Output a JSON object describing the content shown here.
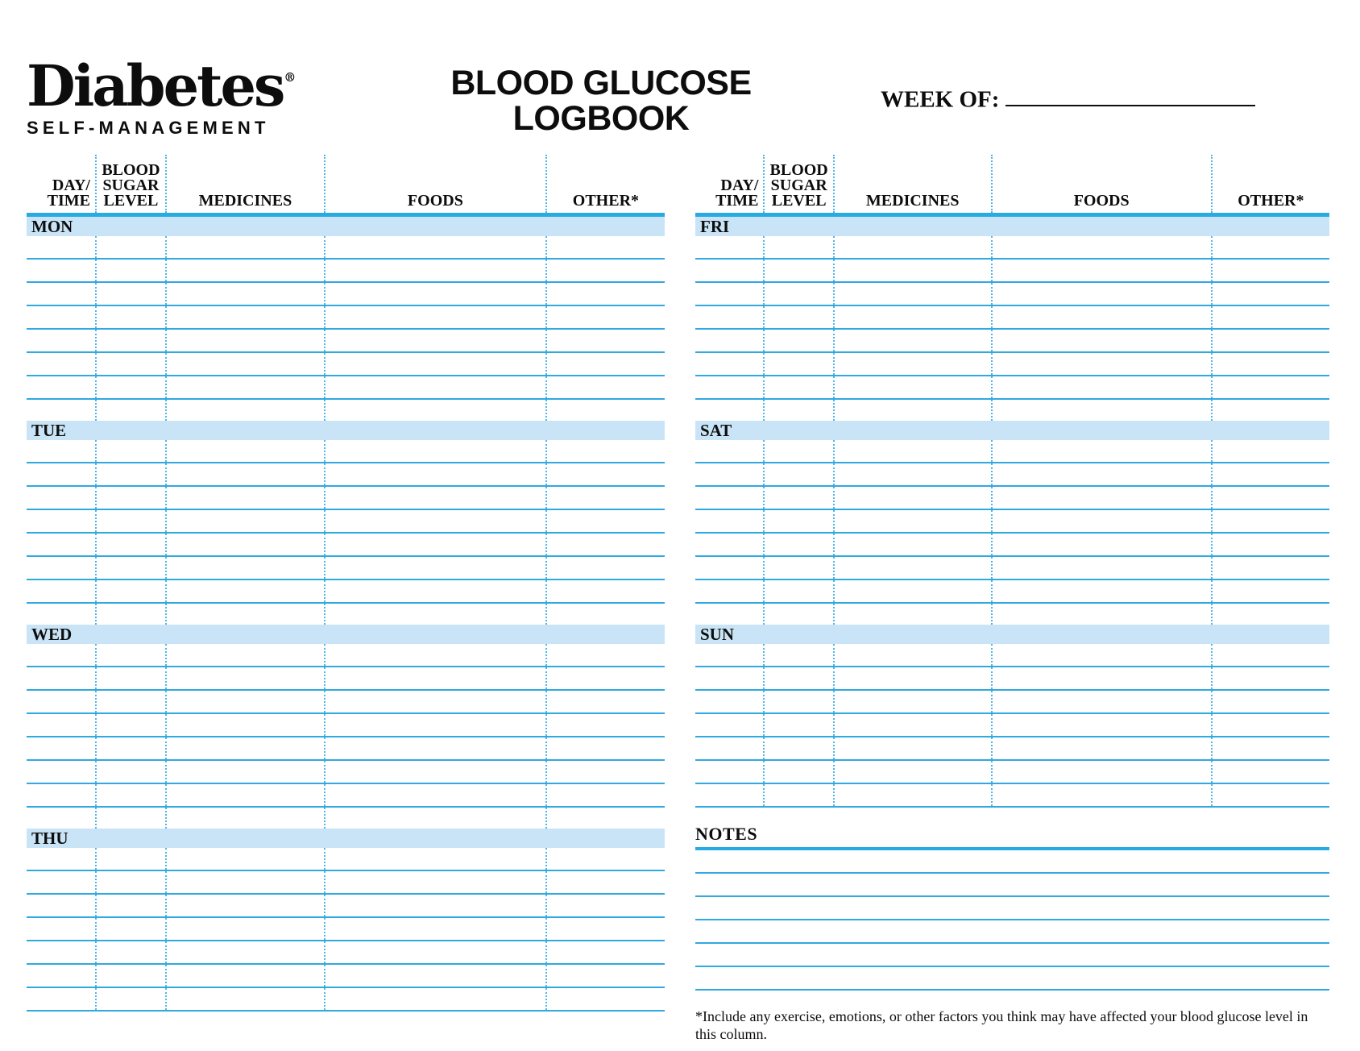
{
  "theme": {
    "accent": "#29abe2",
    "day_bar_fill": "#c9e4f6",
    "rule_line": "#2fa9e0",
    "dotted_line": "#4db7e8",
    "text": "#0d0d0d"
  },
  "logo": {
    "brand": "Diabetes",
    "registered_mark": "®",
    "tagline": "SELF-MANAGEMENT"
  },
  "header": {
    "title_line1": "BLOOD GLUCOSE",
    "title_line2": "LOGBOOK",
    "week_of_label": "WEEK OF:",
    "week_of_value": ""
  },
  "columns": [
    {
      "id": "day-time",
      "lines": [
        "DAY/",
        "TIME"
      ]
    },
    {
      "id": "blood-sugar-level",
      "lines": [
        "BLOOD",
        "SUGAR",
        "LEVEL"
      ]
    },
    {
      "id": "medicines",
      "lines": [
        "MEDICINES"
      ]
    },
    {
      "id": "foods",
      "lines": [
        "FOODS"
      ]
    },
    {
      "id": "other",
      "lines": [
        "OTHER*"
      ]
    }
  ],
  "panels": [
    {
      "days": [
        {
          "label": "MON",
          "lined_rows": 7,
          "open_row": true
        },
        {
          "label": "TUE",
          "lined_rows": 7,
          "open_row": true
        },
        {
          "label": "WED",
          "lined_rows": 7,
          "open_row": true
        },
        {
          "label": "THU",
          "lined_rows": 7,
          "open_row": false
        }
      ]
    },
    {
      "days": [
        {
          "label": "FRI",
          "lined_rows": 7,
          "open_row": true
        },
        {
          "label": "SAT",
          "lined_rows": 7,
          "open_row": true
        },
        {
          "label": "SUN",
          "lined_rows": 7,
          "open_row": false
        }
      ],
      "notes": {
        "label": "NOTES",
        "lines": 6
      },
      "footnote": "*Include any exercise, emotions, or other factors you think may have affected your blood glucose level in this column."
    }
  ]
}
